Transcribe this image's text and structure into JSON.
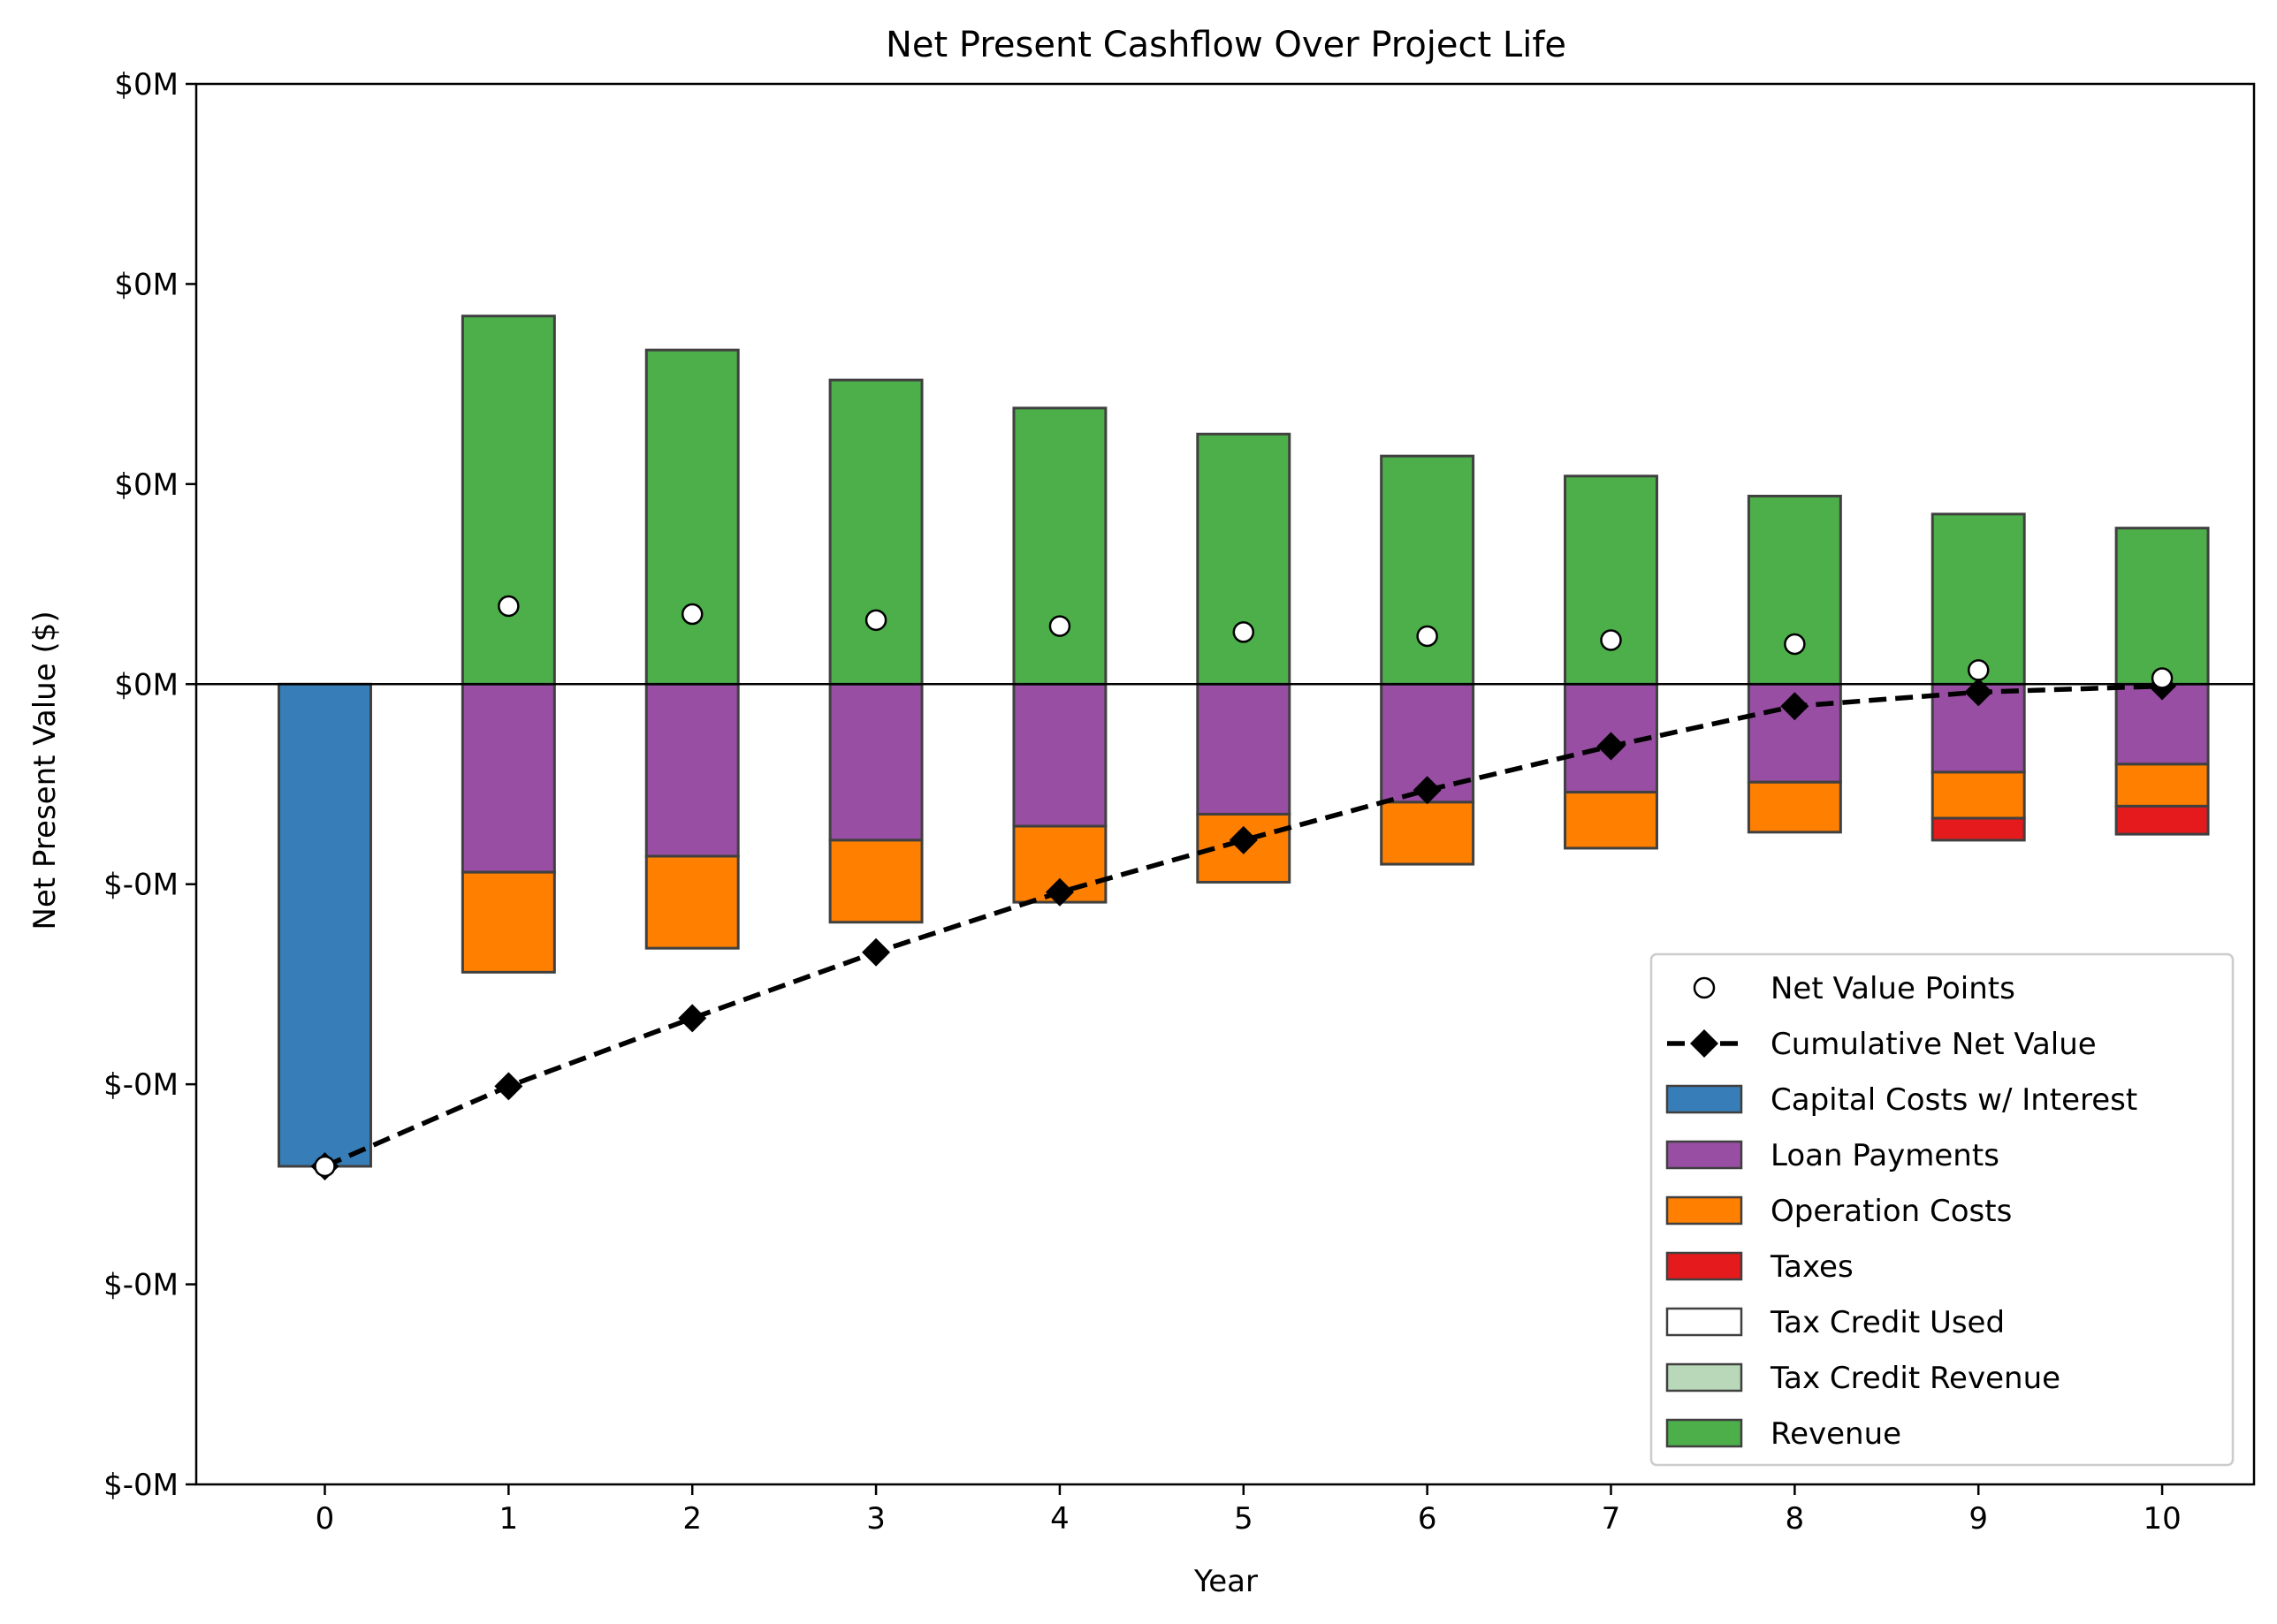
{
  "chart_data": {
    "type": "bar",
    "title": "Net Present Cashflow Over Project Life",
    "xlabel": "Year",
    "ylabel": "Net Present Value ($)",
    "categories": [
      "0",
      "1",
      "2",
      "3",
      "4",
      "5",
      "6",
      "7",
      "8",
      "9",
      "10"
    ],
    "ytick_labels": [
      "$-0M",
      "$-0M",
      "$-0M",
      "$-0M",
      "$0M",
      "$0M",
      "$0M",
      "$0M"
    ],
    "ytick_values": [
      -4,
      -3,
      -2,
      -1,
      0,
      1,
      2,
      3
    ],
    "ylim": [
      -4,
      3
    ],
    "stacking": "positives stacked upward from zero, negatives stacked downward from zero",
    "series": [
      {
        "name": "Capital Costs w/ Interest",
        "color": "#377eb8",
        "values": [
          -2.41,
          0,
          0,
          0,
          0,
          0,
          0,
          0,
          0,
          0,
          0
        ]
      },
      {
        "name": "Loan Payments",
        "color": "#984ea3",
        "values": [
          0,
          -0.94,
          -0.86,
          -0.78,
          -0.71,
          -0.65,
          -0.59,
          -0.54,
          -0.49,
          -0.44,
          -0.4
        ]
      },
      {
        "name": "Operation Costs",
        "color": "#ff7f00",
        "values": [
          0,
          -0.5,
          -0.46,
          -0.41,
          -0.38,
          -0.34,
          -0.31,
          -0.28,
          -0.25,
          -0.23,
          -0.21
        ]
      },
      {
        "name": "Taxes",
        "color": "#e41a1c",
        "values": [
          0,
          0,
          0,
          0,
          0,
          0,
          0,
          0,
          0,
          -0.11,
          -0.14
        ]
      },
      {
        "name": "Tax Credit Used",
        "color": "#ffffff",
        "values": [
          0,
          0,
          0,
          0,
          0,
          0,
          0,
          0,
          0,
          0,
          0
        ]
      },
      {
        "name": "Tax Credit Revenue",
        "color": "#b8d8b9",
        "values": [
          0,
          0,
          0,
          0,
          0,
          0,
          0,
          0,
          0,
          0,
          0
        ]
      },
      {
        "name": "Revenue",
        "color": "#4daf4a",
        "values": [
          0,
          1.84,
          1.67,
          1.52,
          1.38,
          1.25,
          1.14,
          1.04,
          0.94,
          0.85,
          0.78
        ]
      }
    ],
    "net_value_points": {
      "name": "Net Value Points",
      "values": [
        -2.41,
        0.39,
        0.35,
        0.32,
        0.29,
        0.26,
        0.24,
        0.22,
        0.2,
        0.07,
        0.03
      ]
    },
    "cumulative_net_value": {
      "name": "Cumulative Net Value",
      "values": [
        -2.41,
        -2.01,
        -1.67,
        -1.34,
        -1.04,
        -0.78,
        -0.53,
        -0.31,
        -0.11,
        -0.04,
        -0.01
      ]
    },
    "legend": {
      "placement": "lower-right"
    },
    "grid": false
  }
}
